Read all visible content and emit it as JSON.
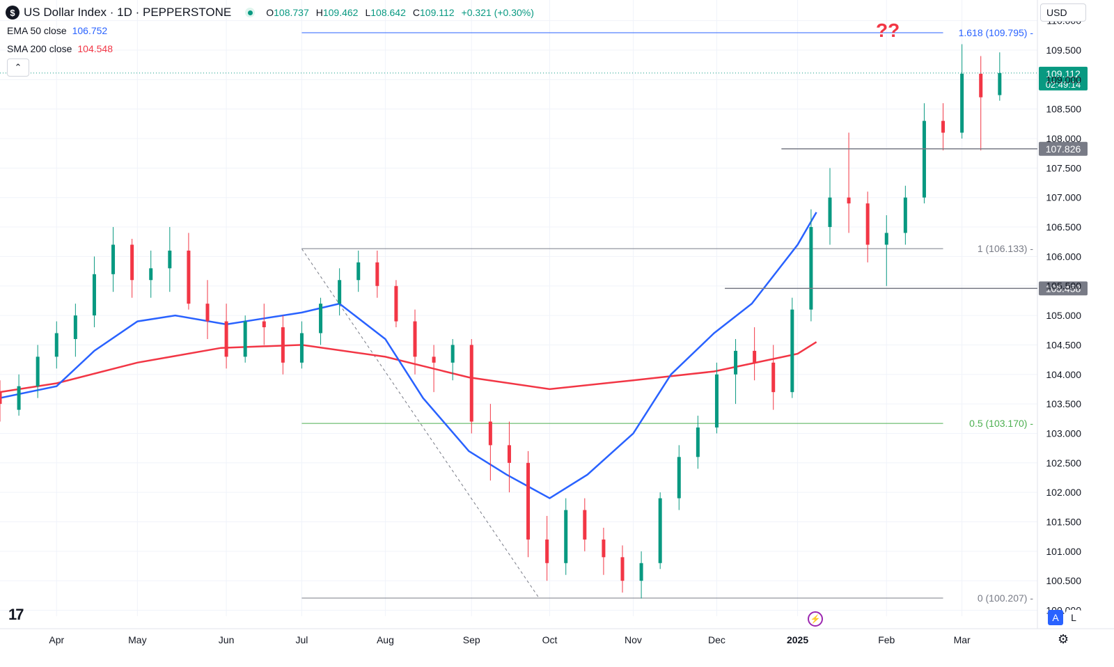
{
  "header": {
    "logo_glyph": "$",
    "title": "US Dollar Index · 1D · PEPPERSTONE",
    "open_label": "O",
    "open": "108.737",
    "high_label": "H",
    "high": "109.462",
    "low_label": "L",
    "low": "108.642",
    "close_label": "C",
    "close": "109.112",
    "change": "+0.321 (+0.30%)"
  },
  "indicators": [
    {
      "label": "EMA 50 close",
      "value": "106.752",
      "color": "#2962ff"
    },
    {
      "label": "SMA 200 close",
      "value": "104.548",
      "color": "#f23645"
    }
  ],
  "currency": "USD",
  "collapse_glyph": "⌃",
  "annotation": "??",
  "tv_logo_text": "17",
  "auto_label": "A",
  "log_label": "L",
  "chart_data": {
    "type": "candlestick",
    "colors": {
      "up": "#089981",
      "down": "#f23645",
      "ema": "#2962ff",
      "sma": "#f23645"
    },
    "x_labels": [
      {
        "label": "Apr",
        "date": "2024-04-01"
      },
      {
        "label": "May",
        "date": "2024-05-01"
      },
      {
        "label": "Jun",
        "date": "2024-06-03"
      },
      {
        "label": "Jul",
        "date": "2024-07-01"
      },
      {
        "label": "Aug",
        "date": "2024-08-01"
      },
      {
        "label": "Sep",
        "date": "2024-09-02"
      },
      {
        "label": "Oct",
        "date": "2024-10-01"
      },
      {
        "label": "Nov",
        "date": "2024-11-01"
      },
      {
        "label": "Dec",
        "date": "2024-12-02"
      },
      {
        "label": "2025",
        "date": "2025-01-01",
        "bold": true
      },
      {
        "label": "Feb",
        "date": "2025-02-03"
      },
      {
        "label": "Mar",
        "date": "2025-03-03"
      }
    ],
    "y_ticks": [
      "100.000",
      "100.500",
      "101.000",
      "101.500",
      "102.000",
      "102.500",
      "103.000",
      "103.500",
      "104.000",
      "104.500",
      "105.000",
      "105.500",
      "106.000",
      "106.500",
      "107.000",
      "107.500",
      "108.000",
      "108.500",
      "109.000",
      "109.500",
      "110.000"
    ],
    "ylim": [
      99.9,
      110.35
    ],
    "x_range": [
      "2024-03-11",
      "2025-03-31"
    ],
    "price_labels": [
      {
        "value": "109.112",
        "subtext": "02:49:14",
        "color": "#089981",
        "line": "dotted"
      },
      {
        "value": "107.826",
        "color": "#787b86",
        "line_from": "2024-12-26"
      },
      {
        "value": "105.458",
        "color": "#787b86",
        "line_from": "2024-12-05"
      }
    ],
    "fibonacci": {
      "from": "2024-07-01",
      "to": "2025-02-24",
      "levels": [
        {
          "label": "1.618 (109.795)",
          "value": 109.795,
          "color": "#2962ff"
        },
        {
          "label": "1 (106.133)",
          "value": 106.133,
          "color": "#787b86"
        },
        {
          "label": "0.5 (103.170)",
          "value": 103.17,
          "color": "#4caf50"
        },
        {
          "label": "0 (100.207)",
          "value": 100.207,
          "color": "#787b86"
        }
      ],
      "trend_line": [
        [
          "2024-07-01",
          106.13
        ],
        [
          "2024-09-27",
          100.21
        ]
      ]
    },
    "ohlc": [
      [
        "2024-03-11",
        103.7,
        103.9,
        103.2,
        103.5
      ],
      [
        "2024-03-18",
        103.4,
        104.0,
        103.3,
        103.8
      ],
      [
        "2024-03-25",
        103.8,
        104.5,
        103.6,
        104.3
      ],
      [
        "2024-04-01",
        104.3,
        104.9,
        104.1,
        104.7
      ],
      [
        "2024-04-08",
        104.6,
        105.2,
        104.3,
        105.0
      ],
      [
        "2024-04-15",
        105.0,
        106.0,
        104.8,
        105.7
      ],
      [
        "2024-04-22",
        105.7,
        106.5,
        105.4,
        106.2
      ],
      [
        "2024-04-29",
        106.2,
        106.3,
        105.3,
        105.6
      ],
      [
        "2024-05-06",
        105.6,
        106.1,
        105.3,
        105.8
      ],
      [
        "2024-05-13",
        105.8,
        106.5,
        105.4,
        106.1
      ],
      [
        "2024-05-20",
        106.1,
        106.4,
        105.1,
        105.2
      ],
      [
        "2024-05-27",
        105.2,
        105.6,
        104.6,
        104.9
      ],
      [
        "2024-06-03",
        104.9,
        105.2,
        104.1,
        104.3
      ],
      [
        "2024-06-10",
        104.3,
        105.0,
        104.2,
        104.9
      ],
      [
        "2024-06-17",
        104.9,
        105.2,
        104.5,
        104.8
      ],
      [
        "2024-06-24",
        104.8,
        105.0,
        104.0,
        104.2
      ],
      [
        "2024-07-01",
        104.2,
        104.9,
        104.1,
        104.7
      ],
      [
        "2024-07-08",
        104.7,
        105.3,
        104.5,
        105.2
      ],
      [
        "2024-07-15",
        105.2,
        105.8,
        105.0,
        105.6
      ],
      [
        "2024-07-22",
        105.6,
        106.1,
        105.4,
        105.9
      ],
      [
        "2024-07-29",
        105.9,
        106.1,
        105.3,
        105.5
      ],
      [
        "2024-08-05",
        105.5,
        105.6,
        104.8,
        104.9
      ],
      [
        "2024-08-12",
        104.9,
        105.1,
        104.0,
        104.3
      ],
      [
        "2024-08-19",
        104.3,
        104.5,
        103.7,
        104.2
      ],
      [
        "2024-08-26",
        104.2,
        104.6,
        103.9,
        104.5
      ],
      [
        "2024-09-02",
        104.5,
        104.6,
        103.0,
        103.2
      ],
      [
        "2024-09-09",
        103.2,
        103.5,
        102.2,
        102.8
      ],
      [
        "2024-09-16",
        102.8,
        103.2,
        102.0,
        102.5
      ],
      [
        "2024-09-23",
        102.5,
        102.7,
        100.9,
        101.2
      ],
      [
        "2024-09-30",
        101.2,
        101.6,
        100.5,
        100.8
      ],
      [
        "2024-10-07",
        100.8,
        101.9,
        100.6,
        101.7
      ],
      [
        "2024-10-14",
        101.7,
        101.9,
        101.0,
        101.2
      ],
      [
        "2024-10-21",
        101.2,
        101.4,
        100.6,
        100.9
      ],
      [
        "2024-10-28",
        100.9,
        101.1,
        100.3,
        100.5
      ],
      [
        "2024-11-04",
        100.5,
        101.0,
        100.2,
        100.8
      ],
      [
        "2024-11-11",
        100.8,
        102.0,
        100.7,
        101.9
      ],
      [
        "2024-11-18",
        101.9,
        102.8,
        101.7,
        102.6
      ],
      [
        "2024-11-25",
        102.6,
        103.3,
        102.4,
        103.1
      ],
      [
        "2024-12-02",
        103.1,
        104.2,
        103.0,
        104.0
      ],
      [
        "2024-12-09",
        104.0,
        104.6,
        103.5,
        104.4
      ],
      [
        "2024-12-16",
        104.4,
        104.8,
        103.9,
        104.2
      ],
      [
        "2024-12-23",
        104.2,
        104.5,
        103.4,
        103.7
      ],
      [
        "2024-12-30",
        103.7,
        105.3,
        103.6,
        105.1
      ],
      [
        "2025-01-06",
        105.1,
        106.8,
        104.9,
        106.5
      ],
      [
        "2025-01-13",
        106.5,
        107.5,
        106.2,
        107.0
      ],
      [
        "2025-01-20",
        107.0,
        108.1,
        106.4,
        106.9
      ],
      [
        "2025-01-27",
        106.9,
        107.1,
        105.9,
        106.2
      ],
      [
        "2025-02-03",
        106.2,
        106.7,
        105.5,
        106.4
      ],
      [
        "2025-02-10",
        106.4,
        107.2,
        106.2,
        107.0
      ],
      [
        "2025-02-17",
        107.0,
        108.6,
        106.9,
        108.3
      ],
      [
        "2025-02-24",
        108.3,
        108.6,
        107.8,
        108.1
      ],
      [
        "2025-03-03",
        108.1,
        109.6,
        108.0,
        109.1
      ],
      [
        "2025-03-10",
        109.1,
        109.4,
        107.8,
        108.7
      ],
      [
        "2025-03-17",
        108.737,
        109.462,
        108.642,
        109.112
      ]
    ],
    "ema50": [
      [
        "2024-03-11",
        103.6
      ],
      [
        "2024-04-01",
        103.8
      ],
      [
        "2024-04-15",
        104.4
      ],
      [
        "2024-05-01",
        104.9
      ],
      [
        "2024-05-15",
        105.0
      ],
      [
        "2024-06-03",
        104.85
      ],
      [
        "2024-06-17",
        104.95
      ],
      [
        "2024-07-01",
        105.05
      ],
      [
        "2024-07-15",
        105.2
      ],
      [
        "2024-08-01",
        104.6
      ],
      [
        "2024-08-15",
        103.6
      ],
      [
        "2024-09-01",
        102.7
      ],
      [
        "2024-09-15",
        102.3
      ],
      [
        "2024-10-01",
        101.9
      ],
      [
        "2024-10-15",
        102.3
      ],
      [
        "2024-11-01",
        103.0
      ],
      [
        "2024-11-15",
        104.0
      ],
      [
        "2024-12-01",
        104.7
      ],
      [
        "2024-12-15",
        105.2
      ],
      [
        "2025-01-01",
        106.2
      ],
      [
        "2025-01-08",
        106.75
      ]
    ],
    "sma200": [
      [
        "2024-03-11",
        103.7
      ],
      [
        "2024-04-01",
        103.85
      ],
      [
        "2024-05-01",
        104.2
      ],
      [
        "2024-06-01",
        104.45
      ],
      [
        "2024-07-01",
        104.5
      ],
      [
        "2024-08-01",
        104.3
      ],
      [
        "2024-09-01",
        103.95
      ],
      [
        "2024-10-01",
        103.75
      ],
      [
        "2024-11-01",
        103.9
      ],
      [
        "2024-12-01",
        104.05
      ],
      [
        "2025-01-01",
        104.35
      ],
      [
        "2025-01-08",
        104.55
      ]
    ]
  }
}
